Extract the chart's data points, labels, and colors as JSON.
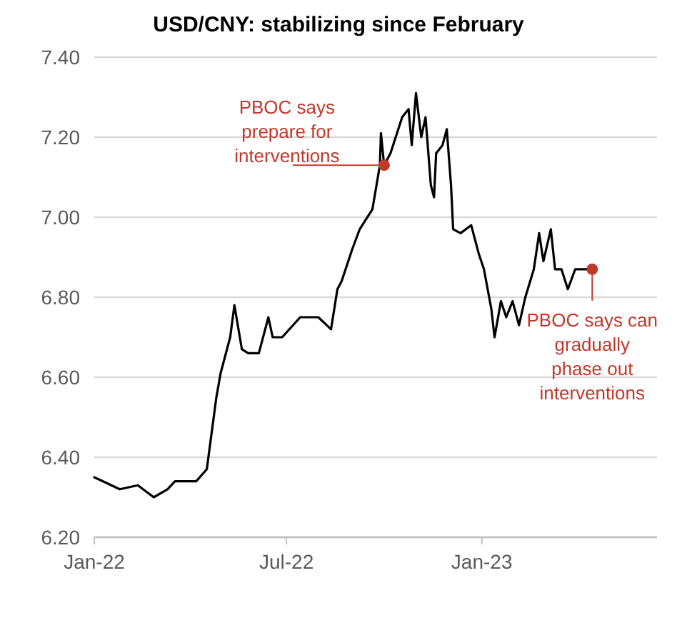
{
  "chart_data": {
    "type": "line",
    "title": "USD/CNY: stabilizing since February",
    "x": [
      "2022-01-01",
      "2022-01-25",
      "2022-02-11",
      "2022-02-26",
      "2022-03-11",
      "2022-03-18",
      "2022-04-07",
      "2022-04-17",
      "2022-04-26",
      "2022-04-30",
      "2022-05-09",
      "2022-05-13",
      "2022-05-20",
      "2022-05-26",
      "2022-06-05",
      "2022-06-14",
      "2022-06-18",
      "2022-06-27",
      "2022-07-14",
      "2022-07-31",
      "2022-08-12",
      "2022-08-18",
      "2022-08-22",
      "2022-09-01",
      "2022-09-08",
      "2022-09-20",
      "2022-09-27",
      "2022-09-28",
      "2022-10-01",
      "2022-10-07",
      "2022-10-18",
      "2022-10-24",
      "2022-10-27",
      "2022-10-31",
      "2022-11-05",
      "2022-11-09",
      "2022-11-14",
      "2022-11-17",
      "2022-11-19",
      "2022-11-25",
      "2022-11-29",
      "2022-12-03",
      "2022-12-05",
      "2022-12-12",
      "2022-12-22",
      "2022-12-29",
      "2023-01-03",
      "2023-01-10",
      "2023-01-13",
      "2023-01-19",
      "2023-01-24",
      "2023-01-30",
      "2023-02-05",
      "2023-02-11",
      "2023-02-19",
      "2023-02-24",
      "2023-02-28",
      "2023-03-07",
      "2023-03-11",
      "2023-03-17",
      "2023-03-23",
      "2023-03-30",
      "2023-04-10",
      "2023-04-15"
    ],
    "series": [
      {
        "color": "#000000",
        "values": [
          6.35,
          6.32,
          6.33,
          6.3,
          6.32,
          6.34,
          6.34,
          6.37,
          6.55,
          6.61,
          6.7,
          6.78,
          6.67,
          6.66,
          6.66,
          6.75,
          6.7,
          6.7,
          6.75,
          6.75,
          6.72,
          6.82,
          6.84,
          6.92,
          6.97,
          7.02,
          7.13,
          7.21,
          7.13,
          7.16,
          7.25,
          7.27,
          7.18,
          7.31,
          7.2,
          7.25,
          7.08,
          7.05,
          7.16,
          7.18,
          7.22,
          7.08,
          6.97,
          6.96,
          6.98,
          6.91,
          6.87,
          6.77,
          6.7,
          6.79,
          6.75,
          6.79,
          6.73,
          6.8,
          6.87,
          6.96,
          6.89,
          6.97,
          6.87,
          6.87,
          6.82,
          6.87,
          6.87,
          6.87
        ]
      }
    ],
    "xlim": [
      "2022-01-01",
      "2023-06-15"
    ],
    "xticks": [
      {
        "value": "2022-01-01",
        "label": "Jan-22"
      },
      {
        "value": "2022-07-01",
        "label": "Jul-22"
      },
      {
        "value": "2023-01-01",
        "label": "Jan-23"
      }
    ],
    "ylim": [
      6.2,
      7.4
    ],
    "yticks": [
      {
        "value": 6.2,
        "label": "6.20"
      },
      {
        "value": 6.4,
        "label": "6.40"
      },
      {
        "value": 6.6,
        "label": "6.60"
      },
      {
        "value": 6.8,
        "label": "6.80"
      },
      {
        "value": 7.0,
        "label": "7.00"
      },
      {
        "value": 7.2,
        "label": "7.20"
      },
      {
        "value": 7.4,
        "label": "7.40"
      }
    ],
    "grid": "y",
    "annotations": [
      {
        "text": "PBOC says prepare for interventions",
        "x": "2022-10-01",
        "y": 7.13
      },
      {
        "text": "PBOC says can gradually phase out interventions",
        "x": "2023-04-15",
        "y": 6.87
      }
    ]
  }
}
